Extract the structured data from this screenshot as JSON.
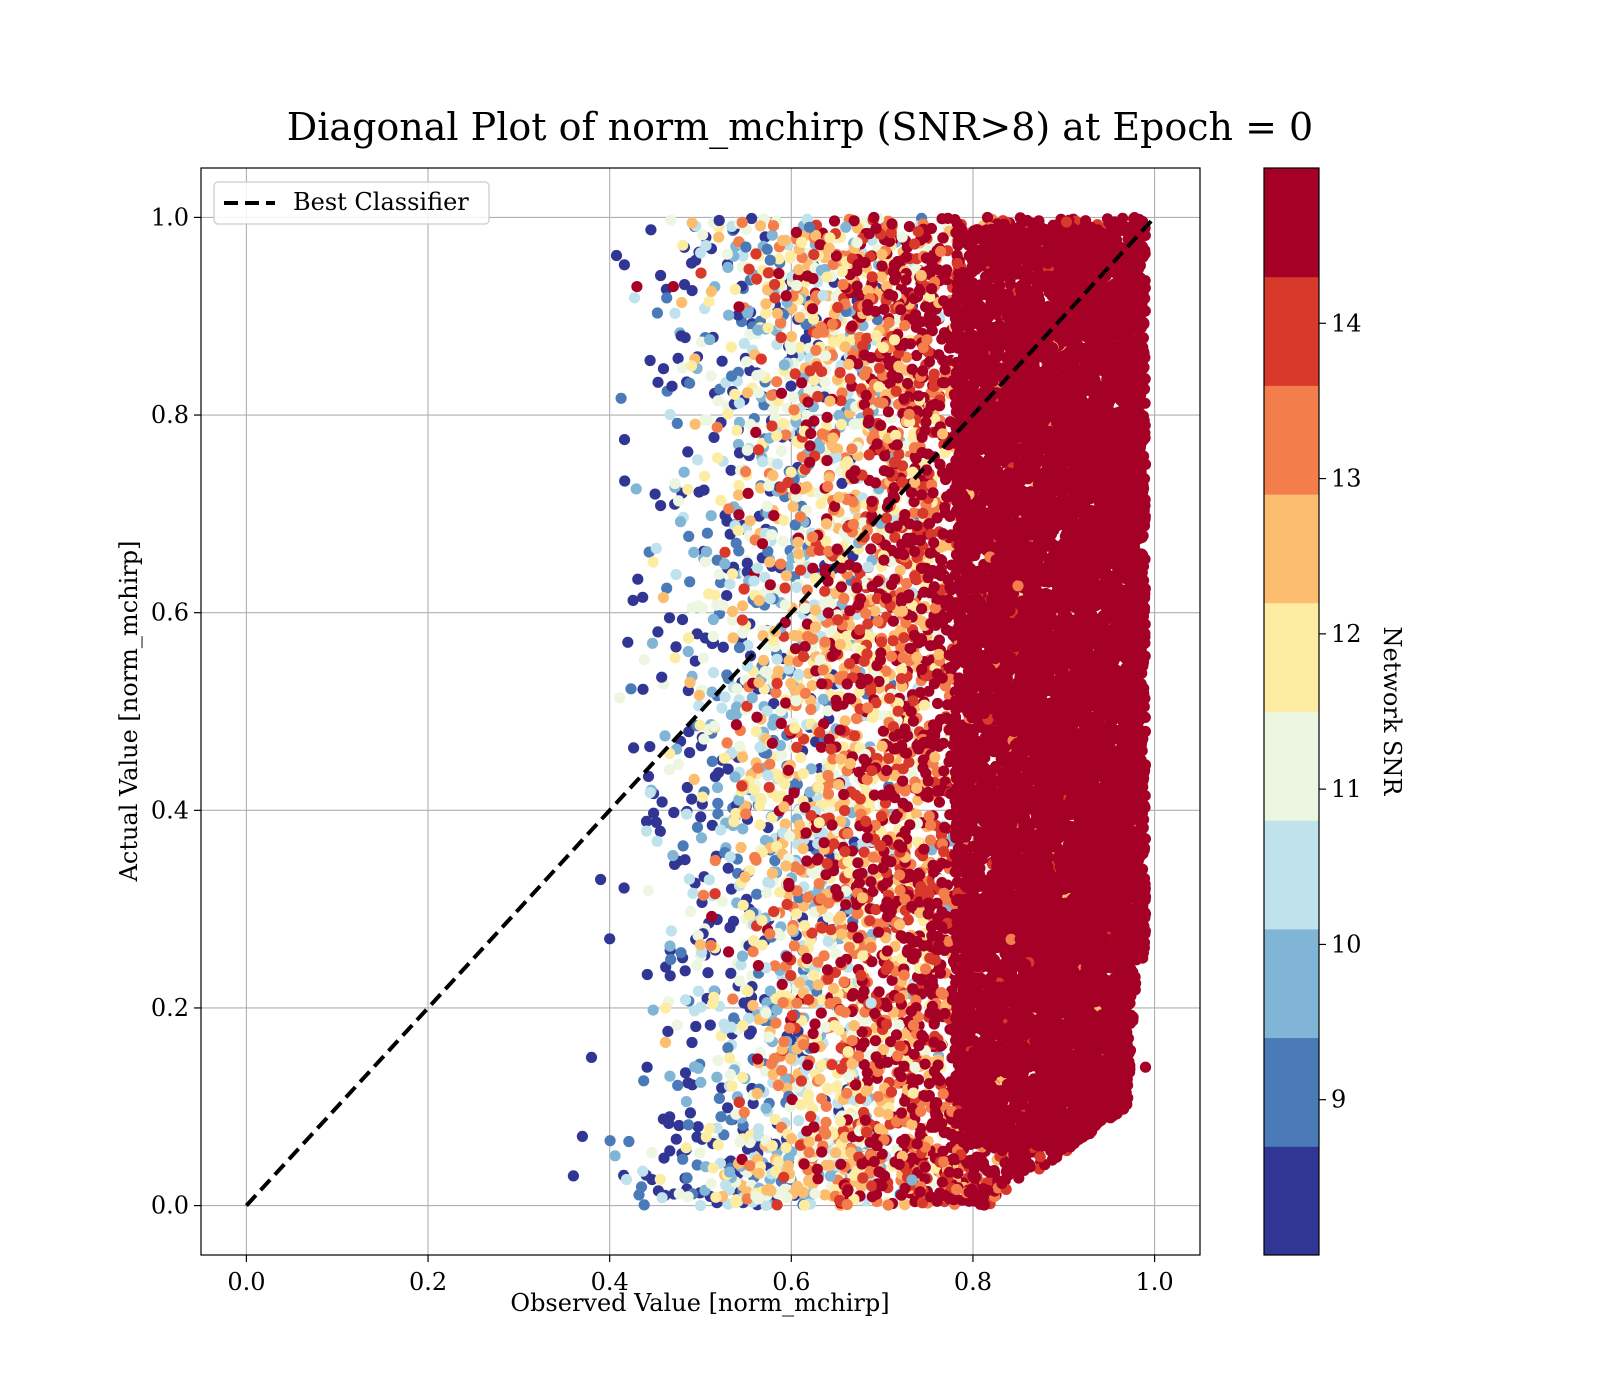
{
  "chart_data": {
    "type": "scatter",
    "title": "Diagonal Plot of norm_mchirp (SNR>8) at Epoch = 0",
    "xlabel": "Observed Value [norm_mchirp]",
    "ylabel": "Actual Value [norm_mchirp]",
    "xlim": [
      -0.05,
      1.05
    ],
    "ylim": [
      -0.05,
      1.05
    ],
    "x_ticks": [
      "0.0",
      "0.2",
      "0.4",
      "0.6",
      "0.8",
      "1.0"
    ],
    "y_ticks": [
      "0.0",
      "0.2",
      "0.4",
      "0.6",
      "0.8",
      "1.0"
    ],
    "grid": true,
    "legend": {
      "placement": "upper-left",
      "entries": [
        "Best Classifier"
      ]
    },
    "best_classifier_line": {
      "x": [
        0.0,
        1.0
      ],
      "y": [
        0.0,
        1.0
      ],
      "style": "dashed",
      "color": "#000000"
    },
    "colorbar": {
      "label": "Network SNR",
      "range": [
        8.0,
        15.0
      ],
      "ticks": [
        "9",
        "10",
        "11",
        "12",
        "13",
        "14"
      ],
      "colormap": "RdYlBu_r",
      "bins": [
        {
          "from": 8.0,
          "to": 8.7,
          "color": "#313695"
        },
        {
          "from": 8.7,
          "to": 9.4,
          "color": "#4a7ab7"
        },
        {
          "from": 9.4,
          "to": 10.1,
          "color": "#81b5d6"
        },
        {
          "from": 10.1,
          "to": 10.8,
          "color": "#bfe2ec"
        },
        {
          "from": 10.8,
          "to": 11.5,
          "color": "#edf6e0"
        },
        {
          "from": 11.5,
          "to": 12.2,
          "color": "#fdeda3"
        },
        {
          "from": 12.2,
          "to": 12.9,
          "color": "#fdbd6f"
        },
        {
          "from": 12.9,
          "to": 13.6,
          "color": "#f47e4b"
        },
        {
          "from": 13.6,
          "to": 14.3,
          "color": "#d9392b"
        },
        {
          "from": 14.3,
          "to": 15.0,
          "color": "#a50026"
        }
      ]
    },
    "scatter_summary": {
      "x_range": [
        0.36,
        0.99
      ],
      "y_range": [
        0.0,
        1.0
      ],
      "trend": "SNR increases with observed value; low SNR (blue) at x≈0.36–0.65, high SNR (dark red) dominant for x > 0.75",
      "sample_points": [
        {
          "x": 0.36,
          "y": 0.03,
          "snr": 8.2
        },
        {
          "x": 0.37,
          "y": 0.07,
          "snr": 8.3
        },
        {
          "x": 0.38,
          "y": 0.15,
          "snr": 8.5
        },
        {
          "x": 0.4,
          "y": 0.27,
          "snr": 8.6
        },
        {
          "x": 0.39,
          "y": 0.33,
          "snr": 8.4
        },
        {
          "x": 0.42,
          "y": 0.57,
          "snr": 8.6
        },
        {
          "x": 0.43,
          "y": 0.93,
          "snr": 14.8
        },
        {
          "x": 0.45,
          "y": 0.72,
          "snr": 8.5
        },
        {
          "x": 0.47,
          "y": 0.93,
          "snr": 14.8
        },
        {
          "x": 0.5,
          "y": 0.0,
          "snr": 10.2
        },
        {
          "x": 0.52,
          "y": 0.98,
          "snr": 12.7
        },
        {
          "x": 0.55,
          "y": 0.97,
          "snr": 8.7
        },
        {
          "x": 0.62,
          "y": 0.99,
          "snr": 8.8
        },
        {
          "x": 0.66,
          "y": 0.99,
          "snr": 9.5
        },
        {
          "x": 0.7,
          "y": 0.02,
          "snr": 14.8
        },
        {
          "x": 0.8,
          "y": 0.03,
          "snr": 14.7
        },
        {
          "x": 0.85,
          "y": 0.05,
          "snr": 14.8
        },
        {
          "x": 0.89,
          "y": 0.06,
          "snr": 14.8
        },
        {
          "x": 0.9,
          "y": 0.07,
          "snr": 14.8
        },
        {
          "x": 0.93,
          "y": 0.99,
          "snr": 14.9
        },
        {
          "x": 0.97,
          "y": 0.99,
          "snr": 14.9
        },
        {
          "x": 0.99,
          "y": 0.14,
          "snr": 14.9
        }
      ]
    }
  }
}
